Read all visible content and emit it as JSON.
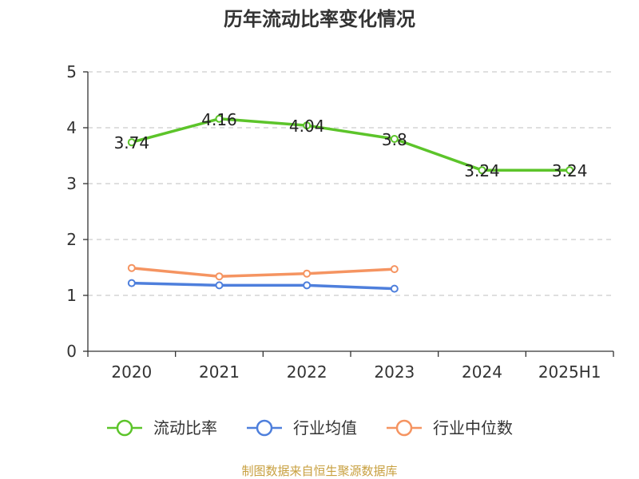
{
  "chart_data": {
    "type": "line",
    "title": "历年流动比率变化情况",
    "categories": [
      "2020",
      "2021",
      "2022",
      "2023",
      "2024",
      "2025H1"
    ],
    "ylim": [
      0,
      5
    ],
    "yticks": [
      "0",
      "1",
      "2",
      "3",
      "4",
      "5"
    ],
    "grid": true,
    "legend_position": "bottom",
    "series": [
      {
        "name": "流动比率",
        "color": "#5cc42a",
        "values": [
          3.74,
          4.16,
          4.04,
          3.8,
          3.24,
          3.24
        ],
        "labels": [
          "3.74",
          "4.16",
          "4.04",
          "3.8",
          "3.24",
          "3.24"
        ]
      },
      {
        "name": "行业均值",
        "color": "#4e7fdc",
        "values": [
          1.22,
          1.18,
          1.18,
          1.12,
          null,
          null
        ]
      },
      {
        "name": "行业中位数",
        "color": "#f59461",
        "values": [
          1.49,
          1.34,
          1.39,
          1.47,
          null,
          null
        ]
      }
    ],
    "source": "制图数据来自恒生聚源数据库"
  }
}
